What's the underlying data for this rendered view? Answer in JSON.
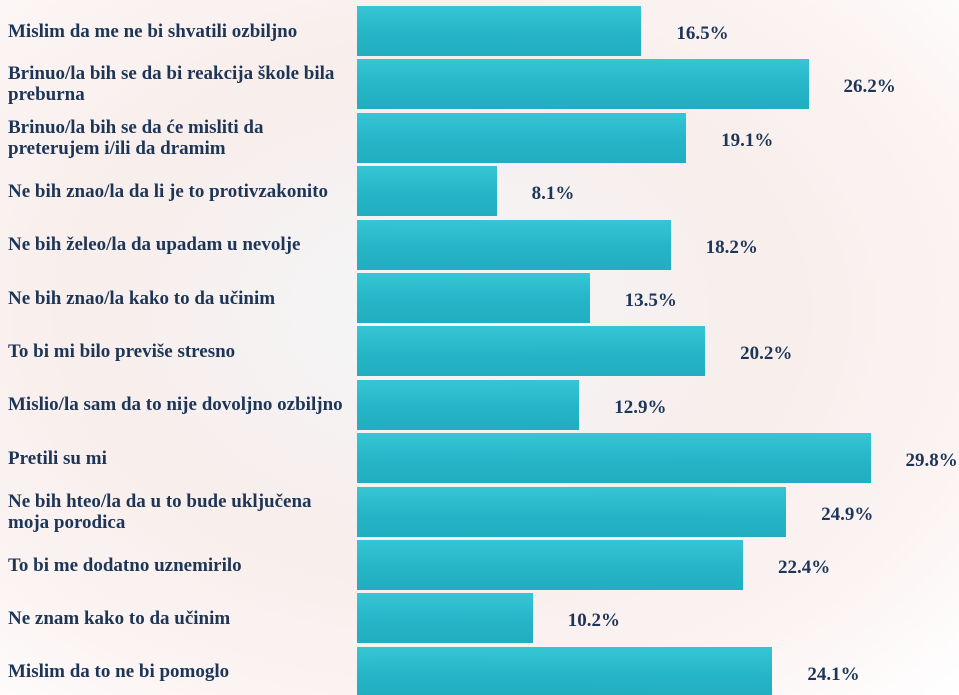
{
  "chart_data": {
    "type": "bar",
    "orientation": "horizontal",
    "categories": [
      "Mislim da me ne bi shvatili ozbiljno",
      "Brinuo/la bih se da bi reakcija škole bila preburna",
      "Brinuo/la bih se da će misliti da preterujem i/ili da dramim",
      "Ne bih znao/la da li je to protivzakonito",
      "Ne bih želeo/la da upadam u nevolje",
      "Ne bih znao/la kako to da učinim",
      "To bi mi bilo previše stresno",
      "Mislio/la sam da to nije dovoljno ozbiljno",
      "Pretili su mi",
      "Ne bih hteo/la da u to bude uključena moja porodica",
      "To bi me dodatno uznemirilo",
      "Ne znam kako to da učinim",
      "Mislim da to ne bi pomoglo"
    ],
    "values": [
      16.5,
      26.2,
      19.1,
      8.1,
      18.2,
      13.5,
      20.2,
      12.9,
      29.8,
      24.9,
      22.4,
      10.2,
      24.1
    ],
    "value_labels": [
      "16.5%",
      "26.2%",
      "19.1%",
      "8.1%",
      "18.2%",
      "13.5%",
      "20.2%",
      "12.9%",
      "29.8%",
      "24.9%",
      "22.4%",
      "10.2%",
      "24.1%"
    ],
    "color": "#1ab2c6",
    "xlim": [
      0,
      30
    ]
  }
}
